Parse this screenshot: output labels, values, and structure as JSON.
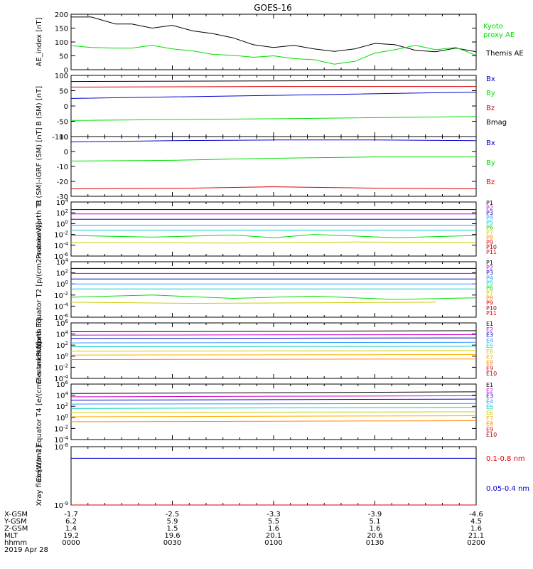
{
  "title": "GOES-16",
  "date_label": "2019 Apr 28",
  "colors": {
    "black": "#000000",
    "green": "#00dd00",
    "blue": "#0000cc",
    "red": "#dd0000",
    "lightblue": "#3399ff",
    "cyan": "#00cccc",
    "yellow": "#cccc00",
    "orange": "#ff8800",
    "magenta": "#cc00cc",
    "darkred": "#990000"
  },
  "chart_data": [
    {
      "type": "line",
      "ylabel": "AE_index [nT]",
      "ylim": [
        0,
        200
      ],
      "yticks": [
        "0",
        "50",
        "100",
        "150",
        "200"
      ],
      "legend": [
        {
          "label": "Kyoto proxy AE",
          "color": "#00dd00"
        },
        {
          "label": "Themis AE",
          "color": "#000000"
        }
      ],
      "series": [
        {
          "name": "Themis AE",
          "color": "#000000",
          "x": [
            0,
            0.05,
            0.11,
            0.15,
            0.2,
            0.25,
            0.3,
            0.35,
            0.4,
            0.45,
            0.5,
            0.55,
            0.6,
            0.65,
            0.7,
            0.75,
            0.8,
            0.85,
            0.9,
            0.95,
            1
          ],
          "y": [
            190,
            190,
            165,
            165,
            150,
            160,
            140,
            130,
            115,
            90,
            80,
            88,
            75,
            66,
            75,
            95,
            90,
            70,
            65,
            78,
            65
          ]
        },
        {
          "name": "Kyoto proxy AE",
          "color": "#00dd00",
          "x": [
            0,
            0.05,
            0.11,
            0.15,
            0.2,
            0.25,
            0.3,
            0.35,
            0.4,
            0.45,
            0.5,
            0.55,
            0.6,
            0.65,
            0.7,
            0.75,
            0.8,
            0.85,
            0.9,
            0.95,
            1
          ],
          "y": [
            87,
            80,
            78,
            78,
            88,
            75,
            68,
            55,
            52,
            45,
            50,
            40,
            36,
            20,
            30,
            60,
            72,
            88,
            72,
            80,
            52
          ]
        }
      ]
    },
    {
      "type": "line",
      "ylabel": "B (SM) [nT]",
      "ylim": [
        -110,
        110
      ],
      "yticks": [
        "-100",
        "-50",
        "0",
        "50",
        "100"
      ],
      "legend": [
        {
          "label": "Bx",
          "color": "#0000cc"
        },
        {
          "label": "By",
          "color": "#00dd00"
        },
        {
          "label": "Bz",
          "color": "#dd0000"
        },
        {
          "label": "Bmag",
          "color": "#000000"
        }
      ],
      "series": [
        {
          "name": "Bmag",
          "color": "#000000",
          "x": [
            0,
            0.5,
            1
          ],
          "y": [
            88,
            90,
            93
          ]
        },
        {
          "name": "Bz",
          "color": "#dd0000",
          "x": [
            0,
            0.5,
            1
          ],
          "y": [
            68,
            70,
            70
          ]
        },
        {
          "name": "Bx",
          "color": "#0000cc",
          "x": [
            0,
            0.5,
            1
          ],
          "y": [
            27,
            38,
            50
          ]
        },
        {
          "name": "By",
          "color": "#00dd00",
          "x": [
            0,
            0.5,
            1
          ],
          "y": [
            -52,
            -46,
            -38
          ]
        }
      ]
    },
    {
      "type": "line",
      "ylabel": "B (SM)-IGRF (SM) [nT]",
      "ylim": [
        -32,
        12
      ],
      "yticks": [
        "-30",
        "-20",
        "-10",
        "0",
        "10"
      ],
      "legend": [
        {
          "label": "Bx",
          "color": "#0000cc"
        },
        {
          "label": "By",
          "color": "#00dd00"
        },
        {
          "label": "Bz",
          "color": "#dd0000"
        }
      ],
      "series": [
        {
          "name": "Bx",
          "color": "#0000cc",
          "x": [
            0,
            0.25,
            0.5,
            0.75,
            1
          ],
          "y": [
            8,
            9,
            9.5,
            9.5,
            9
          ]
        },
        {
          "name": "By",
          "color": "#00dd00",
          "x": [
            0,
            0.25,
            0.5,
            0.75,
            1
          ],
          "y": [
            -6,
            -5.5,
            -4,
            -3,
            -3
          ]
        },
        {
          "name": "Bz",
          "color": "#dd0000",
          "x": [
            0,
            0.3,
            0.5,
            0.75,
            1
          ],
          "y": [
            -26.5,
            -26,
            -25,
            -26,
            -26.5
          ]
        }
      ]
    },
    {
      "type": "line",
      "ylabel": "Protons North T1",
      "yscale": "log",
      "ylim": [
        -6,
        4
      ],
      "yticks": [
        "10-6",
        "10-4",
        "10-2",
        "100",
        "102",
        "104"
      ],
      "legend": [
        {
          "label": "P1",
          "color": "#000000"
        },
        {
          "label": "P2",
          "color": "#cc00cc"
        },
        {
          "label": "P3",
          "color": "#0000cc"
        },
        {
          "label": "P4",
          "color": "#3399ff"
        },
        {
          "label": "P5",
          "color": "#00cccc"
        },
        {
          "label": "P6",
          "color": "#00dd00"
        },
        {
          "label": "P7",
          "color": "#cccc00"
        },
        {
          "label": "P8",
          "color": "#ff8800"
        },
        {
          "label": "P9",
          "color": "#dd0000"
        },
        {
          "label": "P10",
          "color": "#990000"
        },
        {
          "label": "P11",
          "color": "#dd0000"
        }
      ],
      "series": [
        {
          "name": "P1",
          "color": "#000000",
          "x": [
            0,
            1
          ],
          "y": [
            2.6,
            2.6
          ]
        },
        {
          "name": "P2",
          "color": "#cc00cc",
          "x": [
            0,
            1
          ],
          "y": [
            1.8,
            1.8
          ]
        },
        {
          "name": "P3",
          "color": "#0000cc",
          "x": [
            0,
            1
          ],
          "y": [
            0.8,
            0.8
          ]
        },
        {
          "name": "P4",
          "color": "#3399ff",
          "x": [
            0,
            1
          ],
          "y": [
            -0.3,
            -0.3
          ]
        },
        {
          "name": "P5",
          "color": "#00cccc",
          "x": [
            0,
            1
          ],
          "y": [
            -1.2,
            -1.2
          ]
        },
        {
          "name": "P6",
          "color": "#00dd00",
          "x": [
            0,
            0.2,
            0.4,
            0.5,
            0.6,
            0.8,
            1
          ],
          "y": [
            -2.2,
            -2.5,
            -2.1,
            -2.6,
            -2.0,
            -2.6,
            -2.2
          ]
        },
        {
          "name": "P7",
          "color": "#cccc00",
          "x": [
            0,
            0.4,
            0.7,
            1
          ],
          "y": [
            -3.5,
            -3.6,
            -3.4,
            -3.5
          ]
        }
      ]
    },
    {
      "type": "line",
      "ylabel": "Protons Equator T2 [p/(cm2-s-sr-keV)]",
      "yscale": "log",
      "ylim": [
        -6,
        4
      ],
      "yticks": [
        "10-6",
        "10-4",
        "10-2",
        "100",
        "102",
        "104"
      ],
      "legend": [
        {
          "label": "P1",
          "color": "#000000"
        },
        {
          "label": "P2",
          "color": "#cc00cc"
        },
        {
          "label": "P3",
          "color": "#0000cc"
        },
        {
          "label": "P4",
          "color": "#3399ff"
        },
        {
          "label": "P5",
          "color": "#00cccc"
        },
        {
          "label": "P6",
          "color": "#00dd00"
        },
        {
          "label": "P7",
          "color": "#cccc00"
        },
        {
          "label": "P8",
          "color": "#ff8800"
        },
        {
          "label": "P9",
          "color": "#dd0000"
        },
        {
          "label": "P10",
          "color": "#990000"
        },
        {
          "label": "P11",
          "color": "#dd0000"
        }
      ],
      "series": [
        {
          "name": "P1",
          "color": "#000000",
          "x": [
            0,
            1
          ],
          "y": [
            2.8,
            2.8
          ]
        },
        {
          "name": "P2",
          "color": "#cc00cc",
          "x": [
            0,
            1
          ],
          "y": [
            1.9,
            1.9
          ]
        },
        {
          "name": "P3",
          "color": "#0000cc",
          "x": [
            0,
            1
          ],
          "y": [
            0.9,
            0.9
          ]
        },
        {
          "name": "P4",
          "color": "#3399ff",
          "x": [
            0,
            1
          ],
          "y": [
            0,
            0
          ]
        },
        {
          "name": "P5",
          "color": "#00cccc",
          "x": [
            0,
            1
          ],
          "y": [
            -0.9,
            -0.9
          ]
        },
        {
          "name": "P6",
          "color": "#00dd00",
          "x": [
            0,
            0.2,
            0.4,
            0.6,
            0.8,
            1
          ],
          "y": [
            -2.4,
            -2.0,
            -2.6,
            -2.2,
            -2.8,
            -2.5
          ]
        },
        {
          "name": "P7",
          "color": "#cccc00",
          "x": [
            0,
            0.3,
            0.6,
            0.9
          ],
          "y": [
            -3.3,
            -3.5,
            -3.4,
            -3.3
          ]
        }
      ]
    },
    {
      "type": "line",
      "ylabel": "Electrons North T3",
      "yscale": "log",
      "ylim": [
        -4,
        6
      ],
      "yticks": [
        "10-4",
        "10-2",
        "100",
        "102",
        "104",
        "106"
      ],
      "legend": [
        {
          "label": "E1",
          "color": "#000000"
        },
        {
          "label": "E2",
          "color": "#cc00cc"
        },
        {
          "label": "E3",
          "color": "#0000cc"
        },
        {
          "label": "E4",
          "color": "#3399ff"
        },
        {
          "label": "E5",
          "color": "#00cccc"
        },
        {
          "label": "E6",
          "color": "#cccc00"
        },
        {
          "label": "E7",
          "color": "#ffaa00"
        },
        {
          "label": "E8",
          "color": "#ff8800"
        },
        {
          "label": "E9",
          "color": "#dd0000"
        },
        {
          "label": "E10",
          "color": "#990000"
        }
      ],
      "series": [
        {
          "name": "E1",
          "color": "#000000",
          "x": [
            0,
            1
          ],
          "y": [
            4.4,
            4.6
          ]
        },
        {
          "name": "E2",
          "color": "#cc00cc",
          "x": [
            0,
            1
          ],
          "y": [
            3.8,
            3.9
          ]
        },
        {
          "name": "E3",
          "color": "#0000cc",
          "x": [
            0,
            1
          ],
          "y": [
            3.2,
            3.3
          ]
        },
        {
          "name": "E4",
          "color": "#3399ff",
          "x": [
            0,
            1
          ],
          "y": [
            2.4,
            2.5
          ]
        },
        {
          "name": "E5",
          "color": "#00cccc",
          "x": [
            0,
            1
          ],
          "y": [
            1.7,
            1.8
          ]
        },
        {
          "name": "E6",
          "color": "#cccc00",
          "x": [
            0,
            1
          ],
          "y": [
            0.9,
            1.0
          ]
        },
        {
          "name": "E7",
          "color": "#ffaa00",
          "x": [
            0,
            1
          ],
          "y": [
            0.2,
            0.3
          ]
        },
        {
          "name": "E8",
          "color": "#ff8800",
          "x": [
            0,
            1
          ],
          "y": [
            -0.6,
            -0.5
          ]
        }
      ]
    },
    {
      "type": "line",
      "ylabel": "Electrons Equator T4 [e/(cm2-s-sr-keV)]",
      "yscale": "log",
      "ylim": [
        -4,
        6
      ],
      "yticks": [
        "10-4",
        "10-2",
        "100",
        "102",
        "104",
        "106"
      ],
      "legend": [
        {
          "label": "E1",
          "color": "#000000"
        },
        {
          "label": "E2",
          "color": "#cc00cc"
        },
        {
          "label": "E3",
          "color": "#0000cc"
        },
        {
          "label": "E4",
          "color": "#3399ff"
        },
        {
          "label": "E5",
          "color": "#00cccc"
        },
        {
          "label": "E6",
          "color": "#cccc00"
        },
        {
          "label": "E7",
          "color": "#ffaa00"
        },
        {
          "label": "E8",
          "color": "#ff8800"
        },
        {
          "label": "E9",
          "color": "#dd0000"
        },
        {
          "label": "E10",
          "color": "#990000"
        }
      ],
      "series": [
        {
          "name": "E1",
          "color": "#000000",
          "x": [
            0,
            1
          ],
          "y": [
            4.3,
            4.6
          ]
        },
        {
          "name": "E2",
          "color": "#cc00cc",
          "x": [
            0,
            1
          ],
          "y": [
            3.7,
            3.9
          ]
        },
        {
          "name": "E3",
          "color": "#0000cc",
          "x": [
            0,
            1
          ],
          "y": [
            3.1,
            3.3
          ]
        },
        {
          "name": "E4",
          "color": "#3399ff",
          "x": [
            0,
            1
          ],
          "y": [
            2.4,
            2.5
          ]
        },
        {
          "name": "E5",
          "color": "#00cccc",
          "x": [
            0,
            1
          ],
          "y": [
            1.6,
            1.8
          ]
        },
        {
          "name": "E6",
          "color": "#cccc00",
          "x": [
            0,
            1
          ],
          "y": [
            0.9,
            1.0
          ]
        },
        {
          "name": "E7",
          "color": "#ffaa00",
          "x": [
            0,
            1
          ],
          "y": [
            0.1,
            0.3
          ]
        },
        {
          "name": "E8",
          "color": "#ff8800",
          "x": [
            0,
            1
          ],
          "y": [
            -0.8,
            -0.6
          ]
        }
      ]
    },
    {
      "type": "line",
      "ylabel": "Xray flux [W/m2]",
      "yscale": "log",
      "ylim": [
        -9,
        -8
      ],
      "yticks": [
        "10-9",
        "10-8"
      ],
      "legend": [
        {
          "label": "0.1-0.8 nm",
          "color": "#dd0000"
        },
        {
          "label": "0.05-0.4 nm",
          "color": "#0000cc"
        }
      ],
      "series": [
        {
          "name": "0.05-0.4 nm",
          "color": "#0000cc",
          "x": [
            0,
            1
          ],
          "y": [
            -8.2,
            -8.2
          ]
        },
        {
          "name": "0.1-0.8 nm",
          "color": "#dd0000",
          "x": [
            0,
            1
          ],
          "y": [
            -9,
            -9
          ]
        }
      ]
    }
  ],
  "xaxis": {
    "row_labels": [
      "X-GSM",
      "Y-GSM",
      "Z-GSM",
      "MLT",
      "hhmm"
    ],
    "ticks": [
      {
        "values": [
          "-1.7",
          "6.2",
          "1.4",
          "19.2",
          "0000"
        ]
      },
      {
        "values": [
          "-2.5",
          "5.9",
          "1.5",
          "19.6",
          "0030"
        ]
      },
      {
        "values": [
          "-3.3",
          "5.5",
          "1.6",
          "20.1",
          "0100"
        ]
      },
      {
        "values": [
          "-3.9",
          "5.1",
          "1.6",
          "20.6",
          "0130"
        ]
      },
      {
        "values": [
          "-4.6",
          "4.5",
          "1.6",
          "21.1",
          "0200"
        ]
      }
    ]
  }
}
